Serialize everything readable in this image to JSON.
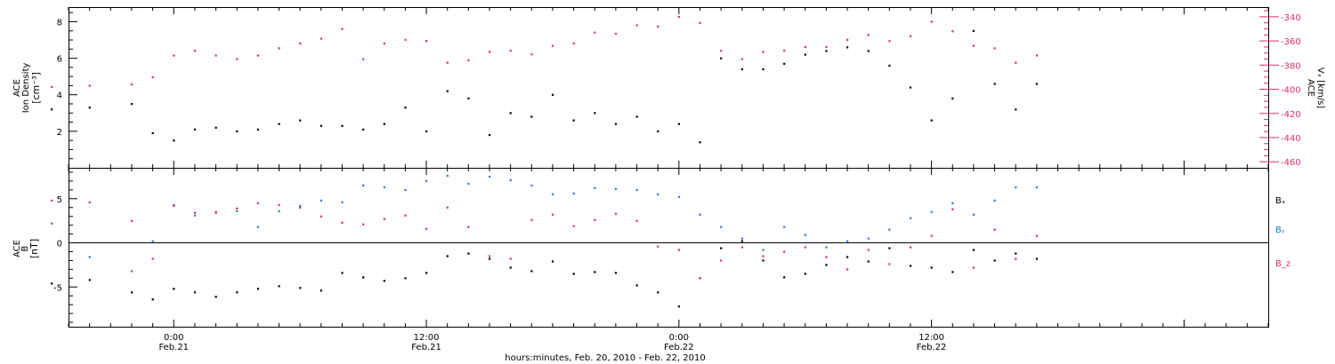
{
  "colors": {
    "frame": "#000000",
    "density": "#000000",
    "vx": "#e0305e",
    "bx": "#000000",
    "by": "#1f7fe0",
    "bz": "#e0305e"
  },
  "xaxis": {
    "title": "hours:minutes, Feb. 20, 2010 - Feb. 22, 2010",
    "range": [
      -5,
      52
    ],
    "ticks": [
      {
        "hour": 0,
        "time": "0:00",
        "date": "Feb.21"
      },
      {
        "hour": 12,
        "time": "12:00",
        "date": "Feb.21"
      },
      {
        "hour": 24,
        "time": "0:00",
        "date": "Feb.22"
      },
      {
        "hour": 36,
        "time": "12:00",
        "date": "Feb.22"
      }
    ]
  },
  "panels": {
    "top": {
      "left_label": {
        "line1": "ACE",
        "line2": "Ion Density",
        "line3": "[cm⁻³]"
      },
      "right_label": {
        "line1": "ACE",
        "line2": "Vₓ [km/s]"
      },
      "left_ticks": [
        "2",
        "4",
        "6",
        "8"
      ],
      "right_ticks": [
        "-340",
        "-360",
        "-380",
        "-400",
        "-420",
        "-440",
        "-460"
      ]
    },
    "bottom": {
      "left_label": {
        "line1": "ACE",
        "line2": "B",
        "line3": "[nT]"
      },
      "left_ticks": [
        "-5",
        "0",
        "5"
      ],
      "legend": [
        "Bₓ",
        "Bᵧ",
        "B_z"
      ]
    }
  },
  "chart_data": [
    {
      "type": "scatter",
      "panel": "top",
      "ylim": [
        0,
        8.8
      ],
      "y2lim": [
        -465,
        -332
      ],
      "grid": false,
      "series": [
        {
          "name": "Ion Density",
          "axis": "left",
          "x": [
            -5.8,
            -4,
            -2,
            -1,
            0,
            1,
            2,
            3,
            4,
            5,
            6,
            7,
            8,
            9,
            10,
            11,
            12,
            13,
            14,
            15,
            16,
            17,
            18,
            19,
            20,
            21,
            22,
            23,
            24,
            25,
            26,
            27,
            28,
            29,
            30,
            31,
            32,
            33,
            34,
            35,
            36,
            37,
            38,
            39,
            40,
            41
          ],
          "y": [
            3.2,
            3.3,
            3.5,
            1.9,
            1.5,
            2.1,
            2.2,
            2.0,
            2.1,
            2.4,
            2.6,
            2.3,
            2.3,
            2.1,
            2.4,
            3.3,
            2.0,
            4.2,
            3.8,
            1.8,
            3.0,
            2.8,
            4.0,
            2.6,
            3.0,
            2.4,
            2.8,
            2.0,
            2.4,
            1.4,
            6.0,
            5.4,
            5.4,
            5.7,
            6.2,
            6.4,
            6.6,
            6.4,
            5.6,
            4.4,
            2.6,
            3.8,
            7.5,
            4.6,
            3.2,
            4.6
          ]
        },
        {
          "name": "Vx",
          "axis": "right",
          "x": [
            -5.8,
            -4,
            -2,
            -1,
            0,
            1,
            2,
            3,
            4,
            5,
            6,
            7,
            8,
            9,
            10,
            11,
            12,
            13,
            14,
            15,
            16,
            17,
            18,
            19,
            20,
            21,
            22,
            23,
            24,
            25,
            26,
            27,
            28,
            29,
            30,
            31,
            32,
            33,
            34,
            35,
            36,
            37,
            38,
            39,
            40,
            41
          ],
          "y": [
            -398,
            -397,
            -396,
            -390,
            -372,
            -368,
            -372,
            -375,
            -372,
            -366,
            -362,
            -358,
            -350,
            -375,
            -362,
            -359,
            -360,
            -378,
            -376,
            -369,
            -368,
            -371,
            -364,
            -362,
            -353,
            -354,
            -347,
            -348,
            -340,
            -345,
            -368,
            -375,
            -369,
            -368,
            -365,
            -365,
            -359,
            -355,
            -360,
            -356,
            -344,
            -352,
            -364,
            -366,
            -378,
            -372
          ]
        }
      ]
    },
    {
      "type": "scatter",
      "panel": "bottom",
      "ylim": [
        -9.5,
        8.5
      ],
      "grid": false,
      "series": [
        {
          "name": "Bx",
          "x": [
            -5.8,
            -4,
            -2,
            -1,
            0,
            1,
            2,
            3,
            4,
            5,
            6,
            7,
            8,
            9,
            10,
            11,
            12,
            13,
            14,
            15,
            16,
            17,
            18,
            19,
            20,
            21,
            22,
            23,
            24,
            25,
            26,
            27,
            28,
            29,
            30,
            31,
            32,
            33,
            34,
            35,
            36,
            37,
            38,
            39,
            40,
            41
          ],
          "y": [
            -4.6,
            -4.2,
            -5.6,
            -6.4,
            -5.2,
            -5.6,
            -6.1,
            -5.6,
            -5.2,
            -4.9,
            -5.1,
            -5.4,
            -3.4,
            -3.9,
            -4.3,
            -4.0,
            -3.4,
            -1.5,
            -1.2,
            -1.8,
            -2.8,
            -3.2,
            -2.1,
            -3.5,
            -3.3,
            -3.4,
            -4.8,
            -5.6,
            -7.2,
            -4.0,
            -0.6,
            0.2,
            -2.0,
            -3.9,
            -3.5,
            -2.5,
            -1.6,
            -2.1,
            -0.6,
            -2.6,
            -2.8,
            -3.3,
            -0.8,
            -2.0,
            -1.2,
            -1.8
          ]
        },
        {
          "name": "By",
          "x": [
            -5.8,
            -4,
            -2,
            -1,
            0,
            1,
            2,
            3,
            4,
            5,
            6,
            7,
            8,
            9,
            10,
            11,
            12,
            13,
            14,
            15,
            16,
            17,
            18,
            19,
            20,
            21,
            22,
            23,
            24,
            25,
            26,
            27,
            28,
            29,
            30,
            31,
            32,
            33,
            34,
            35,
            36,
            37,
            38,
            39,
            40,
            41
          ],
          "y": [
            2.2,
            -1.6,
            -3.2,
            0.2,
            4.3,
            3.1,
            3.4,
            3.6,
            1.8,
            3.6,
            4.2,
            4.8,
            4.6,
            6.5,
            6.3,
            6.0,
            7.0,
            7.6,
            6.7,
            7.5,
            7.1,
            6.5,
            5.5,
            5.6,
            6.2,
            6.1,
            6.0,
            5.5,
            5.2,
            3.2,
            1.8,
            0.5,
            -0.8,
            1.8,
            0.9,
            -0.5,
            0.2,
            0.5,
            1.5,
            2.8,
            3.5,
            4.5,
            3.2,
            4.8,
            6.3,
            6.3
          ]
        },
        {
          "name": "Bz",
          "x": [
            -5.8,
            -4,
            -2,
            -1,
            0,
            1,
            2,
            3,
            4,
            5,
            6,
            7,
            8,
            9,
            10,
            11,
            12,
            13,
            14,
            15,
            16,
            17,
            18,
            19,
            20,
            21,
            22,
            23,
            24,
            25,
            26,
            27,
            28,
            29,
            30,
            31,
            32,
            33,
            34,
            35,
            36,
            37,
            38,
            39,
            40,
            41
          ],
          "y": [
            4.8,
            4.6,
            2.5,
            -1.8,
            4.2,
            3.4,
            3.5,
            3.9,
            4.5,
            4.3,
            4.0,
            3.0,
            2.3,
            2.1,
            2.7,
            3.1,
            1.6,
            4.0,
            1.8,
            -1.5,
            -1.8,
            2.6,
            3.2,
            1.9,
            2.6,
            3.3,
            2.5,
            -0.4,
            -0.8,
            -4.0,
            -2.0,
            -0.5,
            -1.5,
            -1.0,
            -0.5,
            -1.6,
            -3.0,
            -0.8,
            -2.4,
            -0.5,
            0.8,
            3.8,
            -2.8,
            1.5,
            -1.8,
            0.8
          ]
        }
      ]
    }
  ]
}
